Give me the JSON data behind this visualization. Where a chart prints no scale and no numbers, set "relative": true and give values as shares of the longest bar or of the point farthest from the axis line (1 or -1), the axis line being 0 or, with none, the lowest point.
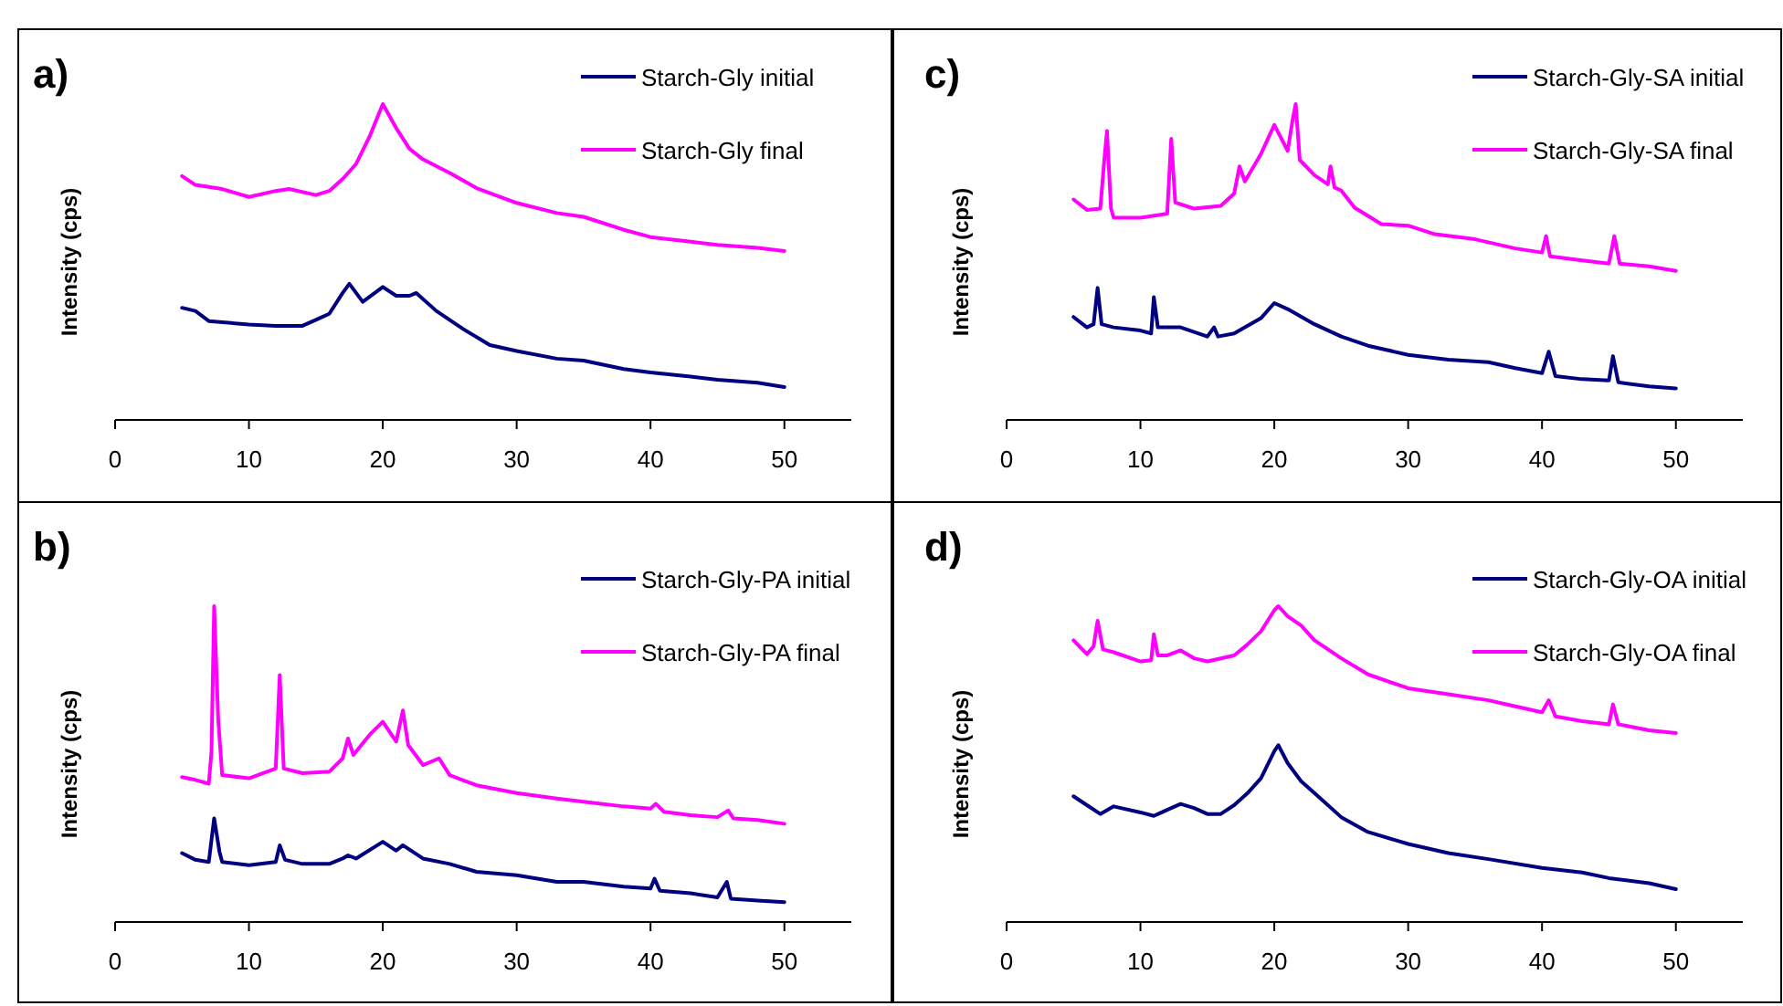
{
  "chart_data": [
    {
      "type": "line",
      "title": "a)",
      "ylabel": "Intensity (cps)",
      "relative": true,
      "xlim": [
        0,
        55
      ],
      "xticks": [
        0,
        10,
        20,
        30,
        40,
        50
      ],
      "tick_labels": "x",
      "legend": "top right",
      "series": [
        {
          "name": "Starch-Gly initial",
          "color": "#000080",
          "x": [
            5,
            6,
            7,
            10,
            12,
            14,
            15,
            16,
            17,
            17.5,
            18.5,
            20,
            21,
            22,
            22.5,
            24,
            26,
            28,
            30,
            33,
            35,
            38,
            40,
            43,
            45,
            48,
            50
          ],
          "values": [
            0.355,
            0.345,
            0.313,
            0.302,
            0.298,
            0.298,
            0.317,
            0.336,
            0.402,
            0.431,
            0.374,
            0.421,
            0.393,
            0.393,
            0.402,
            0.345,
            0.288,
            0.237,
            0.218,
            0.194,
            0.188,
            0.161,
            0.15,
            0.137,
            0.127,
            0.118,
            0.104
          ]
        },
        {
          "name": "Starch-Gly final",
          "color": "#ff00ff",
          "x": [
            5,
            6,
            8,
            10,
            12,
            13,
            15,
            16,
            17,
            18,
            19,
            20,
            21,
            22,
            23,
            25,
            27,
            30,
            33,
            35,
            38,
            40,
            43,
            45,
            48,
            50
          ],
          "values": [
            0.772,
            0.744,
            0.731,
            0.706,
            0.725,
            0.731,
            0.712,
            0.725,
            0.763,
            0.81,
            0.896,
            1,
            0.924,
            0.858,
            0.825,
            0.782,
            0.734,
            0.687,
            0.655,
            0.643,
            0.602,
            0.579,
            0.564,
            0.554,
            0.545,
            0.535
          ]
        }
      ]
    },
    {
      "type": "line",
      "title": "c)",
      "ylabel": "Intensity (cps)",
      "relative": true,
      "xlim": [
        0,
        55
      ],
      "xticks": [
        0,
        10,
        20,
        30,
        40,
        50
      ],
      "tick_labels": "x",
      "legend": "top right",
      "series": [
        {
          "name": "Starch-Gly-SA initial",
          "color": "#000080",
          "x": [
            5,
            6,
            6.5,
            6.8,
            7.1,
            8,
            10,
            10.8,
            11,
            11.3,
            13,
            15,
            15.5,
            15.8,
            17,
            19,
            20,
            21,
            23,
            25,
            27,
            30,
            33,
            36,
            38,
            40,
            40.5,
            41,
            43,
            45,
            45.3,
            45.7,
            48,
            50
          ],
          "values": [
            0.326,
            0.293,
            0.303,
            0.418,
            0.303,
            0.293,
            0.283,
            0.274,
            0.389,
            0.293,
            0.293,
            0.264,
            0.293,
            0.264,
            0.274,
            0.322,
            0.37,
            0.351,
            0.303,
            0.264,
            0.235,
            0.206,
            0.191,
            0.183,
            0.164,
            0.148,
            0.216,
            0.139,
            0.129,
            0.125,
            0.202,
            0.119,
            0.106,
            0.1
          ]
        },
        {
          "name": "Starch-Gly-SA final",
          "color": "#ff00ff",
          "x": [
            5,
            6,
            7,
            7.3,
            7.5,
            7.8,
            8,
            10,
            12,
            12.3,
            12.6,
            14,
            16,
            17,
            17.4,
            17.8,
            19,
            20,
            21,
            21.4,
            21.6,
            21.9,
            23,
            24,
            24.2,
            24.5,
            25,
            26,
            28,
            30,
            32,
            35,
            38,
            40,
            40.3,
            40.6,
            43,
            45,
            45.4,
            45.8,
            48,
            50
          ],
          "values": [
            0.698,
            0.665,
            0.669,
            0.823,
            0.915,
            0.669,
            0.64,
            0.64,
            0.653,
            0.89,
            0.688,
            0.669,
            0.678,
            0.717,
            0.803,
            0.755,
            0.842,
            0.934,
            0.852,
            0.958,
            1,
            0.823,
            0.775,
            0.746,
            0.803,
            0.736,
            0.726,
            0.672,
            0.62,
            0.615,
            0.588,
            0.572,
            0.543,
            0.53,
            0.582,
            0.518,
            0.505,
            0.495,
            0.582,
            0.495,
            0.486,
            0.472
          ]
        }
      ]
    },
    {
      "type": "line",
      "title": "b)",
      "ylabel": "Intensity (cps)",
      "relative": true,
      "xlim": [
        0,
        55
      ],
      "xticks": [
        0,
        10,
        20,
        30,
        40,
        50
      ],
      "tick_labels": "x",
      "legend": "top right",
      "series": [
        {
          "name": "Starch-Gly-PA initial",
          "color": "#000080",
          "x": [
            5,
            6,
            7,
            7.4,
            7.8,
            8,
            10,
            12,
            12.3,
            12.7,
            14,
            16,
            17,
            17.4,
            18,
            20,
            21,
            21.5,
            23,
            25,
            27,
            30,
            33,
            35,
            38,
            40,
            40.3,
            40.7,
            43,
            45,
            45.7,
            46,
            48,
            50
          ],
          "values": [
            0.218,
            0.197,
            0.19,
            0.328,
            0.222,
            0.19,
            0.18,
            0.19,
            0.243,
            0.197,
            0.184,
            0.184,
            0.201,
            0.211,
            0.201,
            0.254,
            0.226,
            0.243,
            0.201,
            0.184,
            0.159,
            0.148,
            0.127,
            0.127,
            0.112,
            0.106,
            0.137,
            0.099,
            0.091,
            0.078,
            0.127,
            0.074,
            0.068,
            0.063
          ]
        },
        {
          "name": "Starch-Gly-PA final",
          "color": "#ff00ff",
          "x": [
            5,
            6,
            7,
            7.2,
            7.4,
            7.7,
            8,
            10,
            12,
            12.3,
            12.6,
            14,
            16,
            17,
            17.4,
            17.8,
            19,
            20,
            21,
            21.5,
            21.9,
            23,
            24.2,
            25,
            27,
            30,
            33,
            35,
            38,
            40,
            40.4,
            41,
            43,
            45,
            45.8,
            46.2,
            48,
            50
          ],
          "values": [
            0.459,
            0.45,
            0.438,
            0.539,
            1,
            0.645,
            0.465,
            0.455,
            0.486,
            0.782,
            0.486,
            0.471,
            0.476,
            0.518,
            0.581,
            0.529,
            0.592,
            0.634,
            0.571,
            0.67,
            0.56,
            0.497,
            0.518,
            0.465,
            0.433,
            0.408,
            0.391,
            0.381,
            0.366,
            0.359,
            0.374,
            0.349,
            0.338,
            0.332,
            0.353,
            0.328,
            0.323,
            0.311
          ]
        }
      ]
    },
    {
      "type": "line",
      "title": "d)",
      "ylabel": "Intensity (cps)",
      "relative": true,
      "xlim": [
        0,
        55
      ],
      "xticks": [
        0,
        10,
        20,
        30,
        40,
        50
      ],
      "tick_labels": "x",
      "legend": "top right",
      "series": [
        {
          "name": "Starch-Gly-OA initial",
          "color": "#000080",
          "x": [
            5,
            6,
            7,
            8,
            10,
            11,
            12,
            13,
            14,
            15,
            16,
            17,
            18,
            19,
            20,
            20.3,
            21,
            22,
            23,
            25,
            27,
            30,
            33,
            36,
            40,
            43,
            45,
            48,
            50
          ],
          "values": [
            0.398,
            0.37,
            0.342,
            0.366,
            0.347,
            0.336,
            0.355,
            0.374,
            0.361,
            0.342,
            0.342,
            0.37,
            0.408,
            0.455,
            0.541,
            0.56,
            0.503,
            0.446,
            0.408,
            0.332,
            0.285,
            0.247,
            0.218,
            0.199,
            0.171,
            0.157,
            0.139,
            0.123,
            0.104
          ]
        },
        {
          "name": "Starch-Gly-OA final",
          "color": "#ff00ff",
          "x": [
            5,
            6,
            6.5,
            6.8,
            7.2,
            8,
            10,
            10.8,
            11,
            11.3,
            12,
            13,
            14,
            15,
            17,
            18,
            19,
            20,
            20.3,
            21,
            22,
            23,
            25,
            27,
            30,
            33,
            36,
            38,
            40,
            40.5,
            41,
            43,
            45,
            45.3,
            45.7,
            48,
            50
          ],
          "values": [
            0.892,
            0.848,
            0.873,
            0.954,
            0.863,
            0.854,
            0.825,
            0.829,
            0.911,
            0.844,
            0.844,
            0.86,
            0.835,
            0.825,
            0.844,
            0.879,
            0.92,
            0.987,
            1,
            0.968,
            0.939,
            0.892,
            0.835,
            0.784,
            0.74,
            0.721,
            0.702,
            0.683,
            0.664,
            0.702,
            0.651,
            0.636,
            0.626,
            0.689,
            0.626,
            0.607,
            0.598
          ]
        }
      ]
    }
  ]
}
